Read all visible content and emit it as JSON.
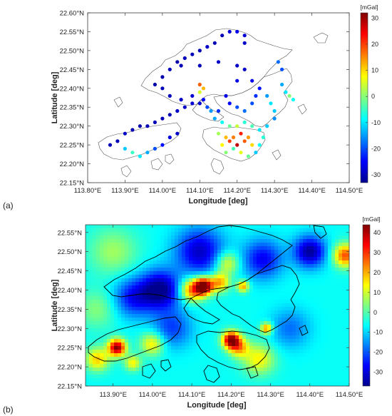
{
  "panel_labels": [
    "(a)",
    "(b)"
  ],
  "chart_data": [
    {
      "type": "scatter",
      "panel": "(a)",
      "xlabel": "Longitude [deg]",
      "ylabel": "Latitude [deg]",
      "xlim": [
        113.8,
        114.5
      ],
      "ylim": [
        22.15,
        22.6
      ],
      "x_ticks": [
        113.8,
        113.9,
        114.0,
        114.1,
        114.2,
        114.3,
        114.4,
        114.5
      ],
      "x_tick_labels": [
        "113.80°E",
        "113.90°E",
        "114.00°E",
        "114.10°E",
        "114.20°E",
        "114.30°E",
        "114.40°E",
        "114.50°E"
      ],
      "y_ticks": [
        22.15,
        22.2,
        22.25,
        22.3,
        22.35,
        22.4,
        22.45,
        22.5,
        22.55,
        22.6
      ],
      "y_tick_labels": [
        "22.15°N",
        "22.20°N",
        "22.25°N",
        "22.30°N",
        "22.35°N",
        "22.40°N",
        "22.45°N",
        "22.50°N",
        "22.55°N",
        "22.60°N"
      ],
      "colorbar": {
        "unit": "[mGal]",
        "min": -33,
        "max": 32,
        "ticks": [
          30,
          20,
          10,
          0,
          -10,
          -20,
          -30
        ]
      },
      "grid": false,
      "series": [
        {
          "values": [
            [
              113.86,
              22.25,
              -30
            ],
            [
              113.88,
              22.26,
              -30
            ],
            [
              113.9,
              22.28,
              -29
            ],
            [
              113.92,
              22.29,
              -30
            ],
            [
              113.94,
              22.3,
              -31
            ],
            [
              113.96,
              22.3,
              -30
            ],
            [
              113.98,
              22.31,
              -30
            ],
            [
              114.0,
              22.32,
              -30
            ],
            [
              114.02,
              22.33,
              -30
            ],
            [
              114.04,
              22.34,
              -29
            ],
            [
              114.06,
              22.35,
              -29
            ],
            [
              114.08,
              22.36,
              -28
            ],
            [
              114.1,
              22.36,
              -28
            ],
            [
              113.9,
              22.24,
              -12
            ],
            [
              113.92,
              22.23,
              -5
            ],
            [
              113.94,
              22.22,
              -10
            ],
            [
              113.96,
              22.23,
              -14
            ],
            [
              113.98,
              22.24,
              -20
            ],
            [
              114.0,
              22.25,
              -24
            ],
            [
              114.02,
              22.27,
              -27
            ],
            [
              114.04,
              22.28,
              -29
            ],
            [
              113.98,
              22.41,
              -31
            ],
            [
              114.0,
              22.43,
              -31
            ],
            [
              114.02,
              22.45,
              -30
            ],
            [
              114.04,
              22.47,
              -31
            ],
            [
              114.06,
              22.48,
              -30
            ],
            [
              114.08,
              22.49,
              -30
            ],
            [
              114.1,
              22.5,
              -30
            ],
            [
              114.12,
              22.51,
              -29
            ],
            [
              114.14,
              22.52,
              -30
            ],
            [
              114.16,
              22.54,
              -30
            ],
            [
              114.18,
              22.55,
              -28
            ],
            [
              114.2,
              22.55,
              -26
            ],
            [
              114.22,
              22.54,
              -28
            ],
            [
              114.22,
              22.52,
              -29
            ],
            [
              114.05,
              22.46,
              -30
            ],
            [
              114.1,
              22.46,
              -30
            ],
            [
              114.15,
              22.47,
              -29
            ],
            [
              114.2,
              22.46,
              -29
            ],
            [
              114.22,
              22.45,
              -29
            ],
            [
              114.0,
              22.4,
              -30
            ],
            [
              114.02,
              22.38,
              -30
            ],
            [
              114.05,
              22.37,
              -29
            ],
            [
              114.08,
              22.38,
              -28
            ],
            [
              114.1,
              22.39,
              5
            ],
            [
              114.1,
              22.41,
              18
            ],
            [
              114.11,
              22.4,
              12
            ],
            [
              114.11,
              22.37,
              -25
            ],
            [
              114.12,
              22.35,
              -20
            ],
            [
              114.13,
              22.34,
              -15
            ],
            [
              114.15,
              22.34,
              -22
            ],
            [
              114.17,
              22.38,
              -27
            ],
            [
              114.18,
              22.36,
              -25
            ],
            [
              114.2,
              22.35,
              -20
            ],
            [
              114.22,
              22.34,
              -18
            ],
            [
              114.24,
              22.36,
              -20
            ],
            [
              114.25,
              22.38,
              -22
            ],
            [
              114.26,
              22.4,
              -24
            ],
            [
              114.24,
              22.42,
              -26
            ],
            [
              114.2,
              22.42,
              -27
            ],
            [
              114.28,
              22.38,
              -15
            ],
            [
              114.29,
              22.36,
              -10
            ],
            [
              114.3,
              22.34,
              -12
            ],
            [
              114.3,
              22.32,
              -16
            ],
            [
              114.32,
              22.41,
              -14
            ],
            [
              114.33,
              22.39,
              -10
            ],
            [
              114.34,
              22.38,
              0
            ],
            [
              114.35,
              22.37,
              -8
            ],
            [
              114.32,
              22.45,
              -20
            ],
            [
              114.31,
              22.47,
              -18
            ],
            [
              114.14,
              22.32,
              -14
            ],
            [
              114.16,
              22.31,
              -8
            ],
            [
              114.18,
              22.3,
              -2
            ],
            [
              114.2,
              22.3,
              4
            ],
            [
              114.22,
              22.31,
              -6
            ],
            [
              114.24,
              22.3,
              -4
            ],
            [
              114.26,
              22.29,
              -10
            ],
            [
              114.28,
              22.3,
              -12
            ],
            [
              114.15,
              22.28,
              2
            ],
            [
              114.17,
              22.27,
              12
            ],
            [
              114.19,
              22.27,
              16
            ],
            [
              114.21,
              22.28,
              22
            ],
            [
              114.23,
              22.27,
              14
            ],
            [
              114.16,
              22.25,
              8
            ],
            [
              114.18,
              22.26,
              20
            ],
            [
              114.2,
              22.25,
              28
            ],
            [
              114.22,
              22.26,
              18
            ],
            [
              114.24,
              22.25,
              10
            ],
            [
              114.17,
              22.23,
              0
            ],
            [
              114.19,
              22.24,
              -4
            ],
            [
              114.21,
              22.23,
              6
            ],
            [
              114.23,
              22.22,
              -2
            ],
            [
              114.26,
              22.25,
              -8
            ],
            [
              114.25,
              22.23,
              -12
            ],
            [
              114.27,
              22.27,
              -6
            ]
          ]
        }
      ]
    },
    {
      "type": "heatmap",
      "panel": "(b)",
      "xlabel": "Longitude [deg]",
      "ylabel": "Latitude [deg]",
      "xlim": [
        113.83,
        114.5
      ],
      "ylim": [
        22.15,
        22.57
      ],
      "x_ticks": [
        113.9,
        114.0,
        114.1,
        114.2,
        114.3,
        114.4,
        114.5
      ],
      "x_tick_labels": [
        "113.90°E",
        "114.00°E",
        "114.10°E",
        "114.20°E",
        "114.30°E",
        "114.40°E",
        "114.50°E"
      ],
      "y_ticks": [
        22.15,
        22.2,
        22.25,
        22.3,
        22.35,
        22.4,
        22.45,
        22.5,
        22.55
      ],
      "y_tick_labels": [
        "22.15°N",
        "22.20°N",
        "22.25°N",
        "22.30°N",
        "22.35°N",
        "22.40°N",
        "22.45°N",
        "22.50°N",
        "22.55°N"
      ],
      "colorbar": {
        "unit": "[mGal]",
        "min": -37,
        "max": 44,
        "ticks": [
          40,
          30,
          20,
          10,
          0,
          -10,
          -20,
          -30
        ]
      },
      "background_value": -6,
      "anomalies": [
        {
          "lon": 114.13,
          "lat": 22.41,
          "value": 48,
          "radius_deg": 0.022
        },
        {
          "lon": 114.1,
          "lat": 22.4,
          "value": 26,
          "radius_deg": 0.03
        },
        {
          "lon": 114.17,
          "lat": 22.42,
          "value": 22,
          "radius_deg": 0.025
        },
        {
          "lon": 114.19,
          "lat": 22.47,
          "value": 14,
          "radius_deg": 0.03
        },
        {
          "lon": 114.23,
          "lat": 22.41,
          "value": 22,
          "radius_deg": 0.015
        },
        {
          "lon": 114.2,
          "lat": 22.27,
          "value": 44,
          "radius_deg": 0.022
        },
        {
          "lon": 114.22,
          "lat": 22.25,
          "value": 18,
          "radius_deg": 0.025
        },
        {
          "lon": 114.27,
          "lat": 22.22,
          "value": 14,
          "radius_deg": 0.04
        },
        {
          "lon": 113.91,
          "lat": 22.25,
          "value": 44,
          "radius_deg": 0.022
        },
        {
          "lon": 113.86,
          "lat": 22.22,
          "value": 18,
          "radius_deg": 0.03
        },
        {
          "lon": 113.95,
          "lat": 22.21,
          "value": 14,
          "radius_deg": 0.02
        },
        {
          "lon": 114.0,
          "lat": 22.26,
          "value": 16,
          "radius_deg": 0.03
        },
        {
          "lon": 114.29,
          "lat": 22.3,
          "value": 24,
          "radius_deg": 0.015
        },
        {
          "lon": 114.49,
          "lat": 22.49,
          "value": 28,
          "radius_deg": 0.03
        },
        {
          "lon": 113.9,
          "lat": 22.5,
          "value": 6,
          "radius_deg": 0.06
        },
        {
          "lon": 113.86,
          "lat": 22.35,
          "value": 4,
          "radius_deg": 0.05
        },
        {
          "lon": 114.02,
          "lat": 22.4,
          "value": -38,
          "radius_deg": 0.05
        },
        {
          "lon": 114.12,
          "lat": 22.5,
          "value": -32,
          "radius_deg": 0.06
        },
        {
          "lon": 114.4,
          "lat": 22.5,
          "value": -36,
          "radius_deg": 0.04
        },
        {
          "lon": 114.28,
          "lat": 22.48,
          "value": -28,
          "radius_deg": 0.05
        },
        {
          "lon": 114.05,
          "lat": 22.3,
          "value": -22,
          "radius_deg": 0.05
        },
        {
          "lon": 114.35,
          "lat": 22.3,
          "value": -18,
          "radius_deg": 0.05
        },
        {
          "lon": 113.95,
          "lat": 22.38,
          "value": -26,
          "radius_deg": 0.05
        }
      ]
    }
  ]
}
